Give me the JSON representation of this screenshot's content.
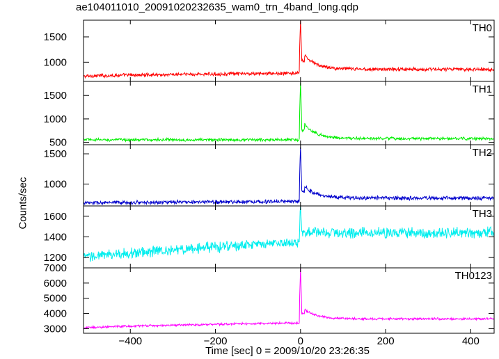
{
  "chart_data": {
    "type": "line",
    "title": "ae104011010_20091020232635_wam0_trn_4band_long.qdp",
    "xlabel": "Time [sec] 0 = 2009/10/20 23:26:35",
    "ylabel": "Counts/sec",
    "xlim": [
      -510,
      455
    ],
    "x_ticks": [
      -400,
      -200,
      0,
      200,
      400
    ],
    "x_tick_labels": [
      "−400",
      "−200",
      "0",
      "200",
      "400"
    ],
    "x_step": 1,
    "grid": false,
    "series": [
      {
        "name": "TH0",
        "color": "#ff0000",
        "ylim": [
          620,
          1830
        ],
        "y_ticks": [
          1000,
          1500
        ],
        "y_tick_labels": [
          "1000",
          "1500"
        ],
        "shape": {
          "base_start": 720,
          "base_end": 810,
          "peak": 1830,
          "peak2": 1130,
          "decay_tail": 860,
          "noise": 28,
          "trend_curve": 0.6
        }
      },
      {
        "name": "TH1",
        "color": "#00ee00",
        "ylim": [
          450,
          1800
        ],
        "y_ticks": [
          500,
          1000,
          1500
        ],
        "y_tick_labels": [
          "500",
          "1000",
          "1500"
        ],
        "shape": {
          "base_start": 555,
          "base_end": 555,
          "peak": 1780,
          "peak2": 880,
          "decay_tail": 580,
          "noise": 25,
          "trend_curve": 1
        }
      },
      {
        "name": "TH2",
        "color": "#0000cc",
        "ylim": [
          640,
          1650
        ],
        "y_ticks": [
          1000,
          1500
        ],
        "y_tick_labels": [
          "1000",
          "1500"
        ],
        "shape": {
          "base_start": 690,
          "base_end": 740,
          "peak": 1620,
          "peak2": 960,
          "decay_tail": 770,
          "noise": 25,
          "trend_curve": 1
        }
      },
      {
        "name": "TH3",
        "color": "#00eeee",
        "ylim": [
          1100,
          1700
        ],
        "y_ticks": [
          1200,
          1400,
          1600
        ],
        "y_tick_labels": [
          "1200",
          "1400",
          "1600"
        ],
        "shape": {
          "base_start": 1200,
          "base_end": 1450,
          "peak": 1700,
          "peak2": 1440,
          "decay_tail": 1440,
          "noise": 40,
          "trend_curve": 0.8
        }
      },
      {
        "name": "TH0123",
        "color": "#ff00ff",
        "ylim": [
          2700,
          7000
        ],
        "y_ticks": [
          3000,
          4000,
          5000,
          6000,
          7000
        ],
        "y_tick_labels": [
          "3000",
          "4000",
          "5000",
          "6000",
          "7000"
        ],
        "shape": {
          "base_start": 3050,
          "base_end": 3580,
          "peak": 6950,
          "peak2": 4250,
          "decay_tail": 3650,
          "noise": 55,
          "trend_curve": 0.7
        }
      }
    ]
  }
}
